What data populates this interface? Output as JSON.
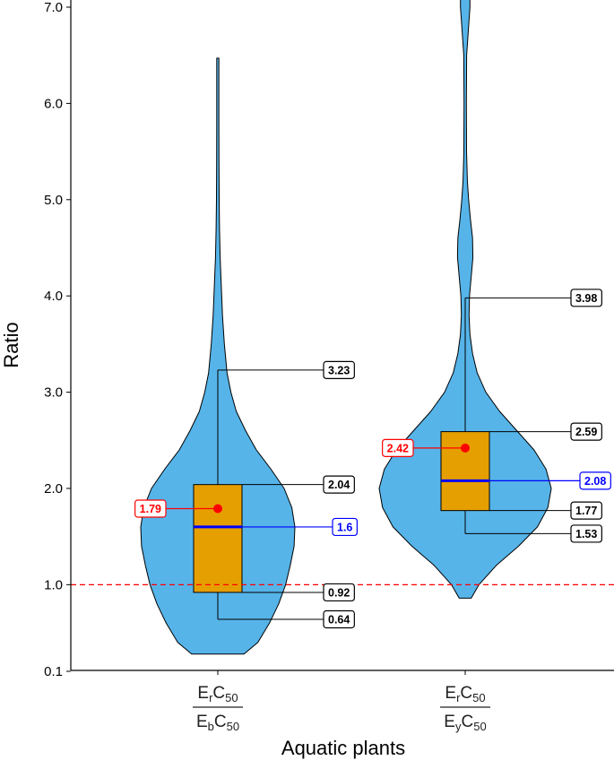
{
  "chart_data": {
    "type": "violin-box",
    "xlabel": "Aquatic plants",
    "ylabel": "Ratio",
    "ylim": [
      0.1,
      7.0
    ],
    "yticks": [
      "0.1",
      "1.0",
      "2.0",
      "3.0",
      "4.0",
      "5.0",
      "6.0",
      "7.0"
    ],
    "ytick_values": [
      0.1,
      1.0,
      2.0,
      3.0,
      4.0,
      5.0,
      6.0,
      7.0
    ],
    "reference_line": 1.0,
    "colors": {
      "violin": "#56B4E9",
      "box": "#E69F00",
      "mean": "#FF0000",
      "median": "#0000FF",
      "reference": "#FF0000"
    },
    "groups": [
      {
        "label": {
          "numerator": {
            "base": "E",
            "sub": "r",
            "suffix": "C",
            "suffix_sub": "50"
          },
          "denominator": {
            "base": "E",
            "sub": "b",
            "suffix": "C",
            "suffix_sub": "50"
          }
        },
        "min": 0.64,
        "q1": 0.92,
        "median": 1.6,
        "q3": 2.04,
        "max": 3.23,
        "mean": 1.79,
        "median_label": "1.6",
        "mean_label": "1.79",
        "labels": [
          "3.23",
          "2.04",
          "0.92",
          "0.64"
        ],
        "violin_profile": [
          [
            0.28,
            0.34
          ],
          [
            0.4,
            0.52
          ],
          [
            0.6,
            0.67
          ],
          [
            0.8,
            0.79
          ],
          [
            1.0,
            0.88
          ],
          [
            1.2,
            0.94
          ],
          [
            1.4,
            0.99
          ],
          [
            1.6,
            1.0
          ],
          [
            1.8,
            0.96
          ],
          [
            2.0,
            0.86
          ],
          [
            2.2,
            0.69
          ],
          [
            2.4,
            0.5
          ],
          [
            2.6,
            0.36
          ],
          [
            2.8,
            0.24
          ],
          [
            3.0,
            0.17
          ],
          [
            3.2,
            0.12
          ],
          [
            3.5,
            0.085
          ],
          [
            3.8,
            0.06
          ],
          [
            4.1,
            0.045
          ],
          [
            4.4,
            0.03
          ],
          [
            4.7,
            0.022
          ],
          [
            5.0,
            0.018
          ],
          [
            5.4,
            0.015
          ],
          [
            5.8,
            0.014
          ],
          [
            6.2,
            0.014
          ],
          [
            6.47,
            0.014
          ]
        ]
      },
      {
        "label": {
          "numerator": {
            "base": "E",
            "sub": "r",
            "suffix": "C",
            "suffix_sub": "50"
          },
          "denominator": {
            "base": "E",
            "sub": "y",
            "suffix": "C",
            "suffix_sub": "50"
          }
        },
        "min": 1.53,
        "q1": 1.77,
        "median": 2.08,
        "q3": 2.59,
        "max": 3.98,
        "mean": 2.42,
        "median_label": "2.08",
        "mean_label": "2.42",
        "labels": [
          "3.98",
          "2.59",
          "1.77",
          "1.53"
        ],
        "violin_profile": [
          [
            0.86,
            0.07
          ],
          [
            1.0,
            0.16
          ],
          [
            1.2,
            0.36
          ],
          [
            1.4,
            0.62
          ],
          [
            1.6,
            0.84
          ],
          [
            1.8,
            0.96
          ],
          [
            2.0,
            1.0
          ],
          [
            2.2,
            0.94
          ],
          [
            2.4,
            0.8
          ],
          [
            2.6,
            0.6
          ],
          [
            2.8,
            0.4
          ],
          [
            3.0,
            0.24
          ],
          [
            3.2,
            0.14
          ],
          [
            3.4,
            0.085
          ],
          [
            3.6,
            0.055
          ],
          [
            3.8,
            0.045
          ],
          [
            4.0,
            0.05
          ],
          [
            4.2,
            0.07
          ],
          [
            4.4,
            0.09
          ],
          [
            4.6,
            0.085
          ],
          [
            4.8,
            0.06
          ],
          [
            5.0,
            0.04
          ],
          [
            5.2,
            0.025
          ],
          [
            5.5,
            0.016
          ],
          [
            6.0,
            0.014
          ],
          [
            6.5,
            0.017
          ],
          [
            6.8,
            0.04
          ],
          [
            7.0,
            0.055
          ],
          [
            7.1,
            0.055
          ]
        ]
      }
    ]
  }
}
